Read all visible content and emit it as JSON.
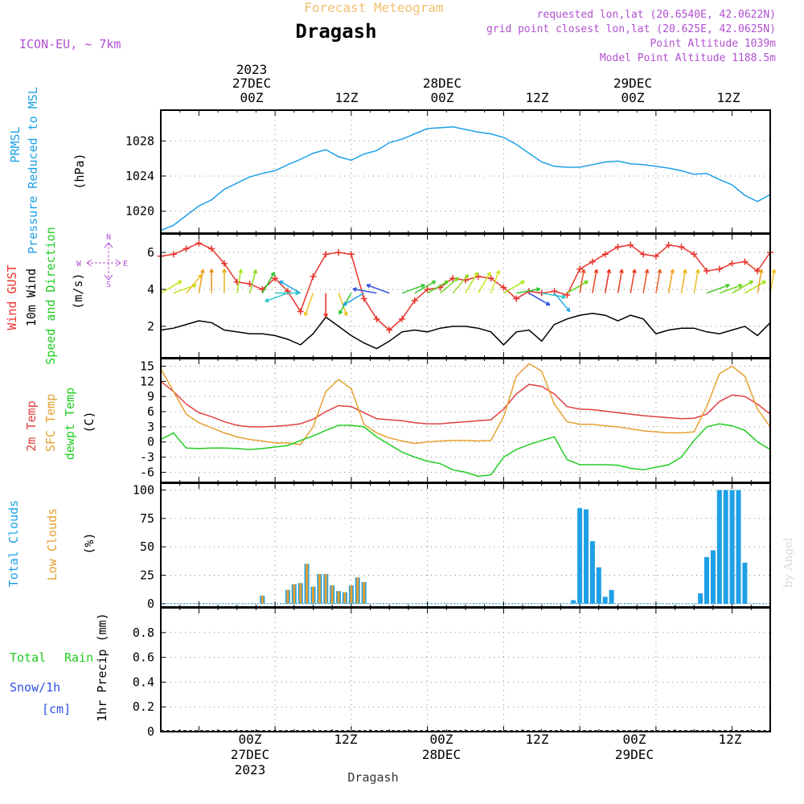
{
  "header": {
    "supertitle": "Forecast Meteogram",
    "location": "Dragash",
    "model": "ICON-EU, ~ 7km",
    "requested": "requested lon,lat (20.6540E, 42.0622N)",
    "grid_point": "grid point closest lon,lat (20.625E, 42.0625N)",
    "point_altitude": "Point Altitude 1039m",
    "model_altitude": "Model Point Altitude 1188.5m",
    "footer_location": "Dragash",
    "signature": "by Angel"
  },
  "time_axis": {
    "top_year": "2023",
    "dates": [
      "27DEC",
      "28DEC",
      "29DEC"
    ],
    "top_labels": [
      "00Z",
      "12Z",
      "00Z",
      "12Z",
      "00Z",
      "12Z"
    ],
    "bottom_labels": [
      "00Z",
      "12Z",
      "00Z",
      "12Z",
      "00Z",
      "12Z"
    ],
    "bottom_year": "2023",
    "range_hours": [
      -18,
      78
    ]
  },
  "panel_labels": {
    "pressure": {
      "l1": "PRMSL",
      "l2": "Pressure Reduced to MSL",
      "unit": "(hPa)"
    },
    "wind": {
      "l1": "Wind GUST",
      "l2": "10m Wind",
      "l3": "Speed and Direction",
      "unit": "(m/s)"
    },
    "compass": {
      "n": "N",
      "e": "E",
      "s": "S",
      "w": "W"
    },
    "temp": {
      "l1": "2m Temp",
      "l2": "SFC Temp",
      "l3": "dewpt Temp",
      "unit": "(C)"
    },
    "clouds": {
      "l1": "Total Clouds",
      "l2": "Low Clouds",
      "unit": "(%)"
    },
    "precip": {
      "l1": "Total",
      "l1b": "Rain",
      "l2": "Snow/1h",
      "l3": "[cm]",
      "unit": "1hr Precip (mm)"
    }
  },
  "colors": {
    "pressure": "#1ea0e6",
    "gust": "#e8342c",
    "wind10m": "#000000",
    "t2m": "#e04040",
    "tsfc": "#e6a030",
    "dewpt": "#22cc22",
    "total_clouds": "#1ea0e6",
    "low_clouds": "#e6a030",
    "rain": "#22cc22",
    "snow": "#3050e0",
    "purple": "#b050d0",
    "title_orange": "#f0c070"
  },
  "chart_data": [
    {
      "type": "line",
      "title": "PRMSL",
      "ylabel": "(hPa)",
      "ylim": [
        1017.5,
        1031.5
      ],
      "yticks": [
        1020,
        1024,
        1028
      ],
      "grid": true,
      "x": [
        -18,
        -16,
        -14,
        -12,
        -10,
        -8,
        -6,
        -4,
        -2,
        0,
        2,
        4,
        6,
        8,
        10,
        12,
        14,
        16,
        18,
        20,
        22,
        24,
        26,
        28,
        30,
        32,
        34,
        36,
        38,
        40,
        42,
        44,
        46,
        48,
        50,
        52,
        54,
        56,
        58,
        60,
        62,
        64,
        66,
        68,
        70,
        72,
        74,
        76,
        78
      ],
      "series": [
        {
          "name": "PRMSL",
          "values": [
            1017.8,
            1018.4,
            1019.5,
            1020.6,
            1021.3,
            1022.5,
            1023.2,
            1023.9,
            1024.3,
            1024.6,
            1025.3,
            1025.9,
            1026.6,
            1027.0,
            1026.2,
            1025.8,
            1026.5,
            1026.9,
            1027.8,
            1028.2,
            1028.8,
            1029.4,
            1029.5,
            1029.6,
            1029.3,
            1029.0,
            1028.8,
            1028.4,
            1027.6,
            1026.6,
            1025.6,
            1025.1,
            1025.0,
            1025.0,
            1025.3,
            1025.6,
            1025.7,
            1025.4,
            1025.3,
            1025.1,
            1024.9,
            1024.6,
            1024.2,
            1024.3,
            1023.6,
            1023.0,
            1021.8,
            1021.1,
            1021.9
          ]
        }
      ]
    },
    {
      "type": "line",
      "title": "Wind",
      "ylabel": "(m/s)",
      "ylim": [
        0.3,
        7.0
      ],
      "yticks": [
        2,
        4,
        6
      ],
      "grid": true,
      "x": [
        -18,
        -16,
        -14,
        -12,
        -10,
        -8,
        -6,
        -4,
        -2,
        0,
        2,
        4,
        6,
        8,
        10,
        12,
        14,
        16,
        18,
        20,
        22,
        24,
        26,
        28,
        30,
        32,
        34,
        36,
        38,
        40,
        42,
        44,
        46,
        48,
        50,
        52,
        54,
        56,
        58,
        60,
        62,
        64,
        66,
        68,
        70,
        72,
        74,
        76,
        78
      ],
      "series": [
        {
          "name": "Wind GUST",
          "values": [
            5.8,
            5.9,
            6.2,
            6.5,
            6.2,
            5.4,
            4.4,
            4.3,
            4.0,
            4.6,
            3.9,
            2.8,
            4.7,
            5.9,
            6.0,
            5.9,
            3.5,
            2.4,
            1.8,
            2.4,
            3.4,
            4.0,
            4.1,
            4.6,
            4.5,
            4.7,
            4.6,
            4.1,
            3.5,
            3.9,
            3.8,
            3.9,
            3.7,
            5.1,
            5.5,
            5.9,
            6.3,
            6.4,
            5.9,
            5.8,
            6.4,
            6.3,
            5.9,
            5.0,
            5.1,
            5.4,
            5.5,
            5.0,
            6.0
          ]
        },
        {
          "name": "10m Wind",
          "values": [
            1.8,
            1.9,
            2.1,
            2.3,
            2.2,
            1.8,
            1.7,
            1.6,
            1.6,
            1.5,
            1.3,
            1.0,
            1.6,
            2.5,
            2.0,
            1.5,
            1.1,
            0.8,
            1.2,
            1.7,
            1.8,
            1.7,
            1.9,
            2.0,
            2.0,
            1.9,
            1.7,
            1.0,
            1.7,
            1.8,
            1.2,
            2.1,
            2.4,
            2.6,
            2.7,
            2.6,
            2.3,
            2.6,
            2.4,
            1.6,
            1.8,
            1.9,
            1.9,
            1.7,
            1.6,
            1.8,
            2.0,
            1.5,
            2.2
          ]
        }
      ],
      "wind_barbs": {
        "hours": [
          -18,
          -16,
          -14,
          -12,
          -10,
          -8,
          -6,
          -4,
          -2,
          0,
          2,
          4,
          6,
          8,
          10,
          12,
          14,
          16,
          18,
          20,
          22,
          24,
          26,
          28,
          30,
          32,
          34,
          36,
          38,
          40,
          42,
          44,
          46,
          48,
          50,
          52,
          54,
          56,
          58,
          60,
          62,
          64,
          66,
          68,
          70,
          72,
          74,
          76,
          78
        ],
        "bearing_deg": [
          60,
          70,
          40,
          10,
          0,
          0,
          10,
          15,
          30,
          90,
          250,
          300,
          200,
          180,
          160,
          210,
          240,
          280,
          290,
          70,
          60,
          60,
          50,
          40,
          30,
          30,
          20,
          60,
          80,
          120,
          100,
          140,
          60,
          10,
          10,
          10,
          10,
          10,
          10,
          10,
          10,
          10,
          10,
          70,
          70,
          60,
          60,
          10,
          10
        ],
        "color_by_speed": [
          "#c8e61e",
          "#b8e61e",
          "#f0c020",
          "#f0a020",
          "#f09020",
          "#e8b020",
          "#a8e61e",
          "#88d61e",
          "#28c828",
          "#28c8c8",
          "#28c8c8",
          "#28a8e6",
          "#f0c020",
          "#e83020",
          "#f0c020",
          "#28c828",
          "#28a8e6",
          "#3050e0",
          "#3050e0",
          "#38c838",
          "#48c838",
          "#58d61e",
          "#78d61e",
          "#98d61e",
          "#b8e61e",
          "#c8e61e",
          "#d8e61e",
          "#a8e61e",
          "#28c828",
          "#3050e0",
          "#28c8c8",
          "#28a8e6",
          "#68d61e",
          "#e85020",
          "#e84020",
          "#e83020",
          "#e84020",
          "#e84020",
          "#e85020",
          "#e86020",
          "#f0a020",
          "#f0b020",
          "#e8c020",
          "#48c828",
          "#68d61e",
          "#88d61e",
          "#a8e61e",
          "#e8a020",
          "#f0c020"
        ]
      }
    },
    {
      "type": "line",
      "title": "Temperature",
      "ylabel": "(C)",
      "ylim": [
        -8,
        16.5
      ],
      "yticks": [
        -6,
        -3,
        0,
        3,
        6,
        9,
        12,
        15
      ],
      "grid": true,
      "x": [
        -18,
        -16,
        -14,
        -12,
        -10,
        -8,
        -6,
        -4,
        -2,
        0,
        2,
        4,
        6,
        8,
        10,
        12,
        14,
        16,
        18,
        20,
        22,
        24,
        26,
        28,
        30,
        32,
        34,
        36,
        38,
        40,
        42,
        44,
        46,
        48,
        50,
        52,
        54,
        56,
        58,
        60,
        62,
        64,
        66,
        68,
        70,
        72,
        74,
        76,
        78
      ],
      "series": [
        {
          "name": "2m Temp",
          "values": [
            12.0,
            10.0,
            7.5,
            5.8,
            5.0,
            4.0,
            3.3,
            3.0,
            3.0,
            3.1,
            3.3,
            3.6,
            4.5,
            6.0,
            7.2,
            7.0,
            5.8,
            4.6,
            4.4,
            4.2,
            3.8,
            3.6,
            3.6,
            3.8,
            4.0,
            4.2,
            4.4,
            6.5,
            9.5,
            11.4,
            11.0,
            9.5,
            7.0,
            6.5,
            6.4,
            6.1,
            5.8,
            5.5,
            5.2,
            5.0,
            4.8,
            4.6,
            4.7,
            5.5,
            8.0,
            9.3,
            9.0,
            7.5,
            5.5
          ]
        },
        {
          "name": "SFC Temp",
          "values": [
            14.5,
            10.0,
            5.5,
            3.8,
            2.8,
            1.8,
            1.0,
            0.5,
            0.2,
            -0.2,
            -0.2,
            -0.5,
            3.0,
            10.0,
            12.4,
            10.5,
            3.5,
            1.8,
            0.8,
            0.2,
            -0.3,
            0.0,
            0.2,
            0.3,
            0.3,
            0.2,
            0.3,
            5.0,
            13.0,
            15.5,
            14.0,
            7.5,
            4.0,
            3.5,
            3.5,
            3.2,
            3.0,
            2.6,
            2.2,
            2.0,
            1.8,
            1.8,
            2.0,
            7.0,
            13.5,
            15.0,
            13.0,
            6.5,
            3.0
          ]
        },
        {
          "name": "dewpt Temp",
          "values": [
            0.5,
            1.8,
            -1.2,
            -1.3,
            -1.2,
            -1.2,
            -1.3,
            -1.5,
            -1.3,
            -1.0,
            -0.7,
            0.3,
            1.2,
            2.3,
            3.3,
            3.3,
            3.0,
            1.0,
            -0.5,
            -2.0,
            -3.0,
            -3.8,
            -4.3,
            -5.5,
            -6.0,
            -6.8,
            -6.5,
            -3.0,
            -1.5,
            -0.5,
            0.3,
            1.0,
            -3.5,
            -4.5,
            -4.5,
            -4.5,
            -4.6,
            -5.2,
            -5.5,
            -5.0,
            -4.5,
            -3.0,
            0.3,
            3.0,
            3.6,
            3.2,
            2.3,
            0.0,
            -1.5
          ]
        }
      ]
    },
    {
      "type": "bar",
      "title": "Clouds",
      "ylabel": "(%)",
      "ylim": [
        -3,
        106
      ],
      "yticks": [
        0,
        25,
        50,
        75,
        100
      ],
      "grid": true,
      "x": [
        -2,
        2,
        3,
        4,
        5,
        6,
        7,
        8,
        9,
        10,
        11,
        12,
        13,
        14,
        15,
        16,
        17,
        18,
        47,
        48,
        49,
        50,
        51,
        52,
        53,
        54,
        55,
        56,
        67,
        68,
        69,
        70,
        71,
        72,
        73,
        74,
        75,
        76,
        77,
        78
      ],
      "series": [
        {
          "name": "Total Clouds",
          "values": [
            7,
            12,
            17,
            18,
            35,
            15,
            26,
            26,
            16,
            11,
            10,
            16,
            23,
            19,
            0,
            0,
            0,
            0,
            3,
            84,
            83,
            55,
            32,
            6,
            12,
            0,
            0,
            0,
            9,
            41,
            47,
            100,
            100,
            100,
            100,
            36,
            0,
            0,
            0,
            0
          ]
        },
        {
          "name": "Low Clouds",
          "values": [
            7,
            12,
            17,
            18,
            35,
            15,
            26,
            26,
            16,
            11,
            10,
            16,
            23,
            19,
            0,
            0,
            0,
            0,
            0,
            0,
            0,
            0,
            0,
            0,
            0,
            0,
            0,
            0,
            0,
            0,
            0,
            0,
            0,
            0,
            0,
            0,
            0,
            0,
            0,
            0
          ]
        }
      ]
    },
    {
      "type": "bar",
      "title": "1hr Precip",
      "ylabel": "1hr Precip (mm)",
      "ylim": [
        0,
        1.0
      ],
      "yticks": [
        0,
        0.2,
        0.4,
        0.6,
        0.8
      ],
      "grid": true,
      "x": [],
      "series": [
        {
          "name": "Total Rain",
          "values": []
        },
        {
          "name": "Snow/1h",
          "values": []
        }
      ]
    }
  ]
}
